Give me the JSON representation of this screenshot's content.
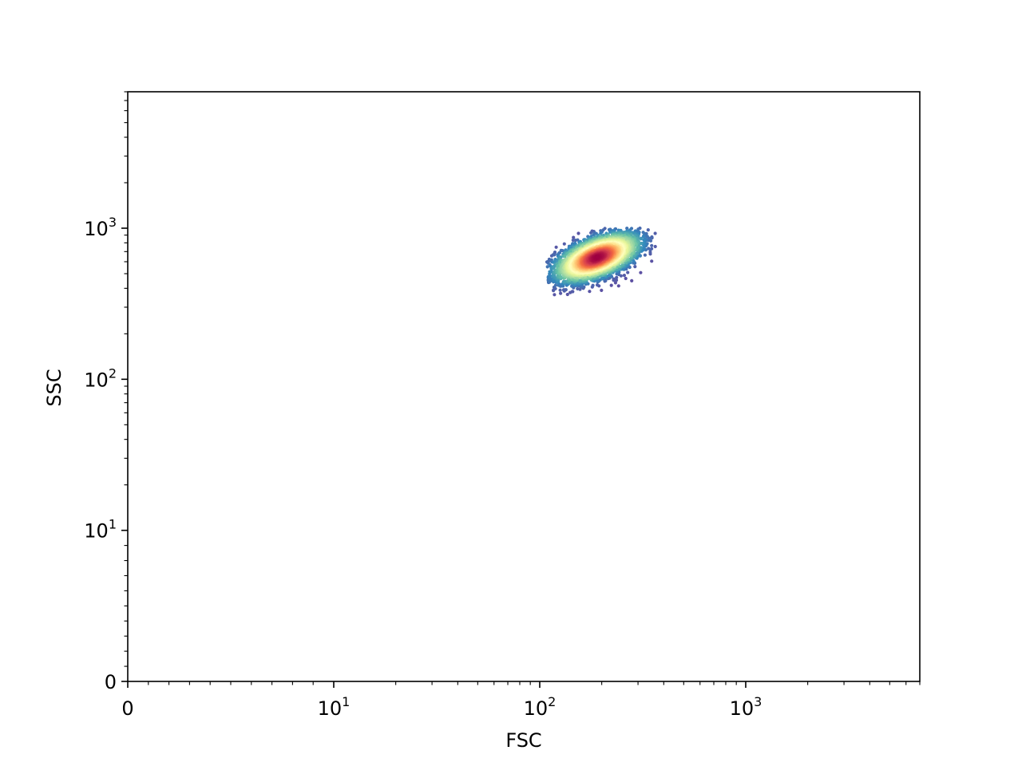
{
  "chart_data": {
    "type": "scatter",
    "title": "",
    "xlabel": "FSC",
    "ylabel": "SSC",
    "x_scale": "symlog",
    "y_scale": "symlog",
    "xlim": [
      0,
      7000
    ],
    "ylim": [
      0,
      8000
    ],
    "x_ticks": [
      {
        "value": 0,
        "base": "0",
        "exp": ""
      },
      {
        "value": 10,
        "base": "10",
        "exp": "1"
      },
      {
        "value": 100,
        "base": "10",
        "exp": "2"
      },
      {
        "value": 1000,
        "base": "10",
        "exp": "3"
      }
    ],
    "y_ticks": [
      {
        "value": 0,
        "base": "0",
        "exp": ""
      },
      {
        "value": 10,
        "base": "10",
        "exp": "1"
      },
      {
        "value": 100,
        "base": "10",
        "exp": "2"
      },
      {
        "value": 1000,
        "base": "10",
        "exp": "3"
      }
    ],
    "grid": false,
    "colormap": "Spectral_r",
    "colormap_meaning": "point density",
    "series": [
      {
        "cluster_center": {
          "x": 190,
          "y": 640
        },
        "x_range": [
          108,
          365
        ],
        "y_range": [
          360,
          1000
        ]
      }
    ]
  }
}
